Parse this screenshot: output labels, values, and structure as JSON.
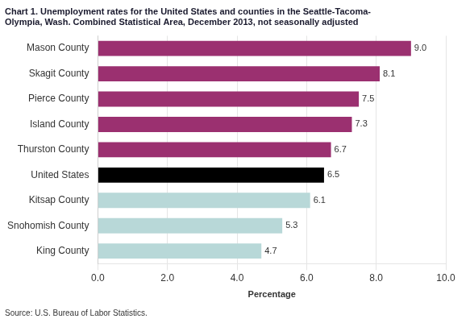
{
  "chart_data": {
    "type": "bar",
    "orientation": "horizontal",
    "title": "Chart 1. Unemployment rates for the United States and counties in the Seattle-Tacoma-\nOlympia, Wash. Combined Statistical Area, December 2013, not seasonally adjusted",
    "categories": [
      "Mason County",
      "Skagit County",
      "Pierce County",
      "Island County",
      "Thurston County",
      "United States",
      "Kitsap County",
      "Snohomish County",
      "King County"
    ],
    "values": [
      9.0,
      8.1,
      7.5,
      7.3,
      6.7,
      6.5,
      6.1,
      5.3,
      4.7
    ],
    "value_labels": [
      "9.0",
      "8.1",
      "7.5",
      "7.3",
      "6.7",
      "6.5",
      "6.1",
      "5.3",
      "4.7"
    ],
    "colors": [
      "#9B3070",
      "#9B3070",
      "#9B3070",
      "#9B3070",
      "#9B3070",
      "#000000",
      "#B8D8D8",
      "#B8D8D8",
      "#B8D8D8"
    ],
    "xlim": [
      0,
      10.0
    ],
    "xticks": [
      {
        "value": 0,
        "label": "0.0"
      },
      {
        "value": 2,
        "label": "2.0"
      },
      {
        "value": 4,
        "label": "4.0"
      },
      {
        "value": 6,
        "label": "6.0"
      },
      {
        "value": 8,
        "label": "8.0"
      },
      {
        "value": 10,
        "label": "10.0"
      }
    ],
    "xlabel": "Percentage",
    "source": "Source: U.S. Bureau of Labor Statistics.",
    "grid": true,
    "data_labels": true
  }
}
